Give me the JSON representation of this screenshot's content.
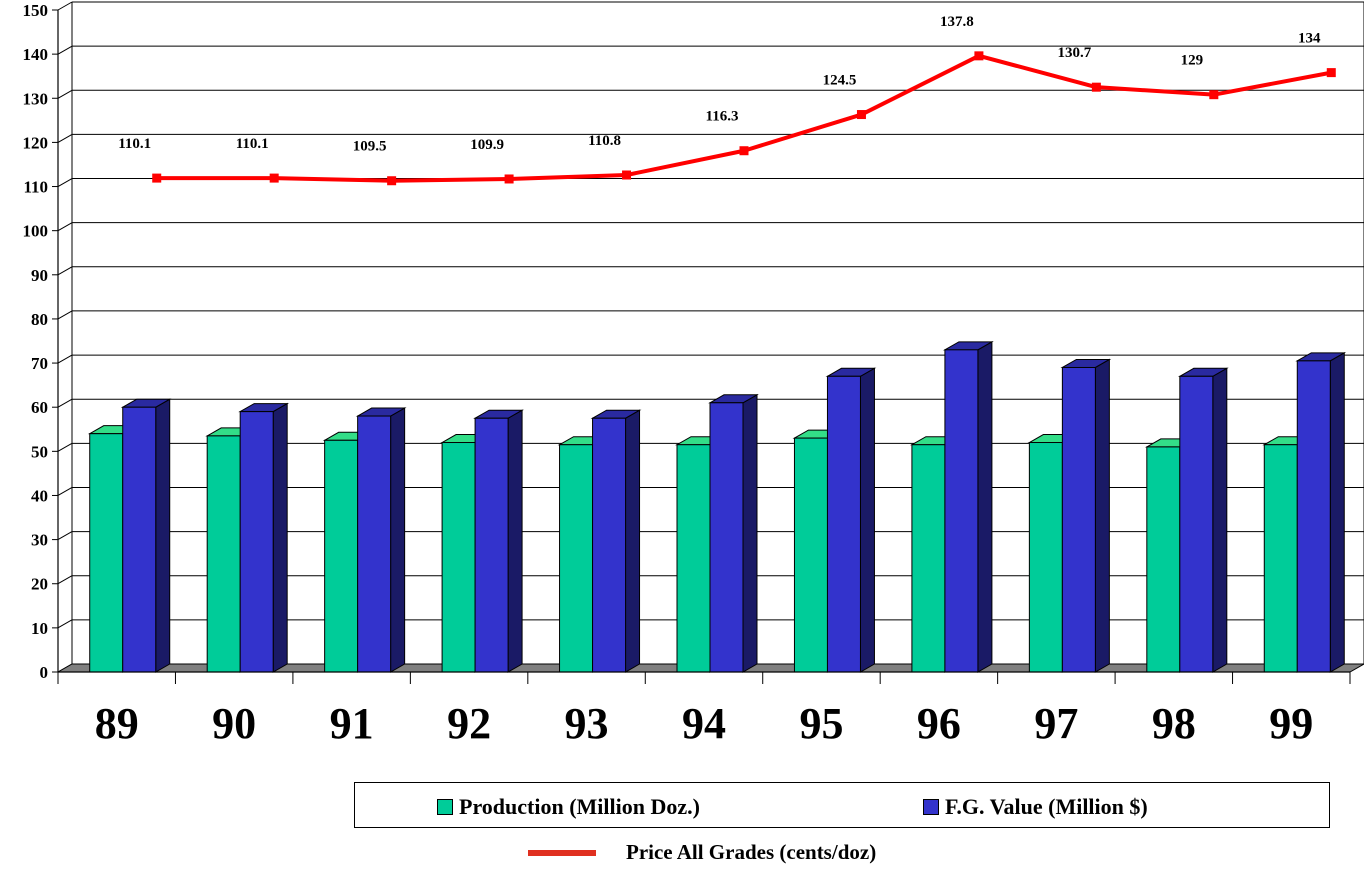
{
  "chart_data": {
    "type": "bar",
    "categories": [
      "89",
      "90",
      "91",
      "92",
      "93",
      "94",
      "95",
      "96",
      "97",
      "98",
      "99"
    ],
    "series": [
      {
        "name": "Production (Million Doz.)",
        "type": "bar",
        "color": "#00cc99",
        "values": [
          54,
          53.5,
          52.5,
          52,
          51.5,
          51.5,
          53,
          51.5,
          52,
          51,
          51.5
        ]
      },
      {
        "name": "F.G. Value (Million $)",
        "type": "bar",
        "color": "#3333cc",
        "values": [
          60,
          59,
          58,
          57.5,
          57.5,
          61,
          67,
          73,
          69,
          67,
          70.5
        ]
      },
      {
        "name": "Price All Grades (cents/doz)",
        "type": "line",
        "color": "#ff0000",
        "values": [
          110.1,
          110.1,
          109.5,
          109.9,
          110.8,
          116.3,
          124.5,
          137.8,
          130.7,
          129,
          134
        ],
        "labels": [
          "110.1",
          "110.1",
          "109.5",
          "109.9",
          "110.8",
          "116.3",
          "124.5",
          "137.8",
          "130.7",
          "129",
          "134"
        ]
      }
    ],
    "yticks": [
      "0",
      "10",
      "20",
      "30",
      "40",
      "50",
      "60",
      "70",
      "80",
      "90",
      "100",
      "110",
      "120",
      "130",
      "140",
      "150"
    ],
    "ylim": [
      0,
      150
    ],
    "grid": true,
    "legend": "bottom"
  }
}
